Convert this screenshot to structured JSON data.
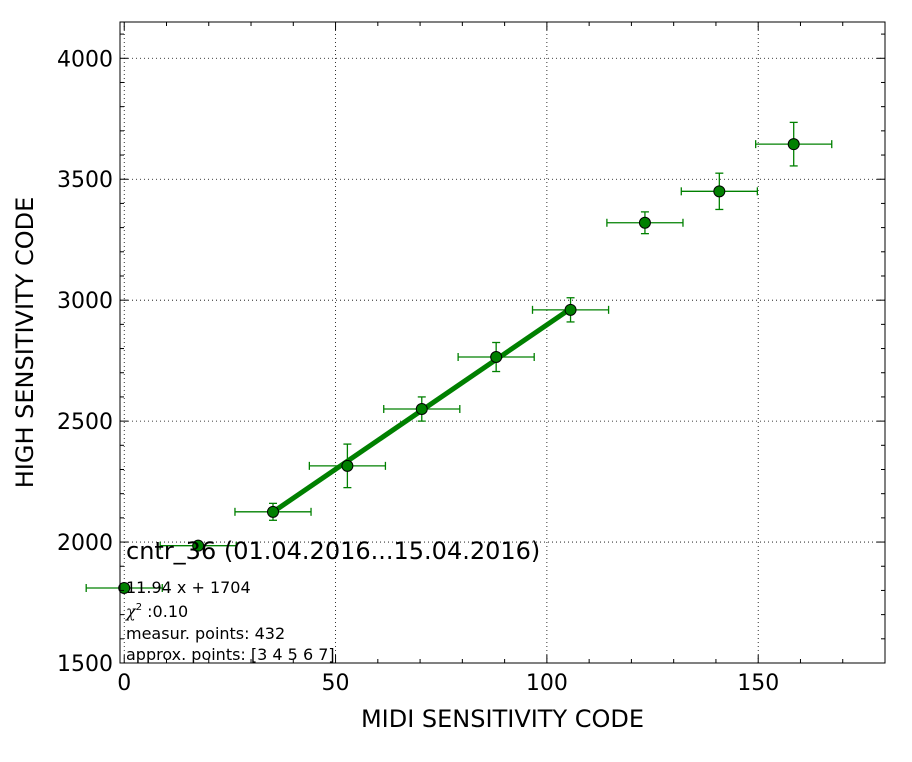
{
  "chart_data": {
    "type": "scatter",
    "title": "",
    "xlabel": "MIDI SENSITIVITY CODE",
    "ylabel": "HIGH SENSITIVITY CODE",
    "xlim": [
      -1,
      180
    ],
    "ylim": [
      1500,
      4150
    ],
    "grid": true,
    "xticks": [
      0,
      50,
      100,
      150
    ],
    "yticks": [
      1500,
      2000,
      2500,
      3000,
      3500,
      4000
    ],
    "x_minor_step": 10,
    "y_minor_step": 100,
    "colors": {
      "series": "#008000",
      "fit": "#008000",
      "axes": "#000000",
      "grid": "#000000"
    },
    "series": [
      {
        "points": [
          {
            "x": 0,
            "y": 1810,
            "xerr": 9,
            "yerr": 0
          },
          {
            "x": 17.5,
            "y": 1985,
            "xerr": 9,
            "yerr": 5
          },
          {
            "x": 35.2,
            "y": 2125,
            "xerr": 9,
            "yerr": 35
          },
          {
            "x": 52.8,
            "y": 2315,
            "xerr": 9,
            "yerr": 90
          },
          {
            "x": 70.4,
            "y": 2550,
            "xerr": 9,
            "yerr": 50
          },
          {
            "x": 88,
            "y": 2765,
            "xerr": 9,
            "yerr": 60
          },
          {
            "x": 105.6,
            "y": 2960,
            "xerr": 9,
            "yerr": 50
          },
          {
            "x": 123.2,
            "y": 3320,
            "xerr": 9,
            "yerr": 45
          },
          {
            "x": 140.8,
            "y": 3450,
            "xerr": 9,
            "yerr": 75
          },
          {
            "x": 158.4,
            "y": 3645,
            "xerr": 9,
            "yerr": 90
          }
        ]
      }
    ],
    "fit": {
      "slope": 11.94,
      "intercept": 1704,
      "x_range": [
        35.2,
        105.6
      ]
    },
    "annotations": {
      "title": "cntr_36 (01.04.2016...15.04.2016)",
      "equation": "11.94 x + 1704",
      "chi_symbol": "χ",
      "chi_sup": "2",
      "chi_value": " :0.10",
      "measur": "measur. points: 432",
      "approx": "approx. points: [3 4 5 6 7]"
    }
  }
}
